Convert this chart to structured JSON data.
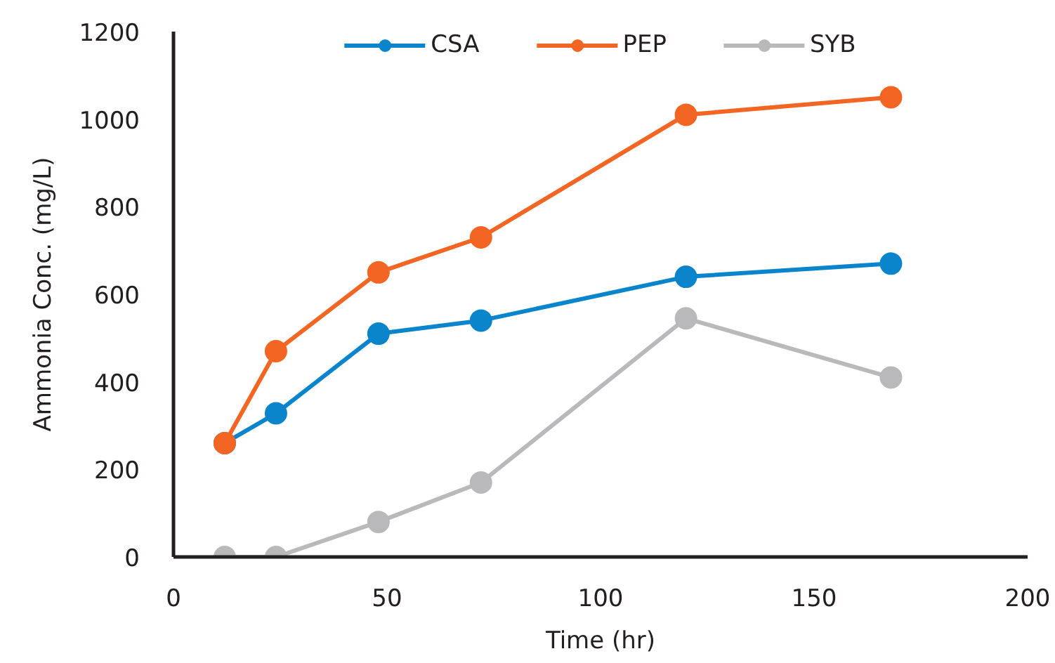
{
  "chart_data": {
    "type": "line",
    "xlabel": "Time (hr)",
    "ylabel": "Ammonia Conc. (mg/L)",
    "x": [
      12,
      24,
      48,
      72,
      120,
      168
    ],
    "series": [
      {
        "name": "CSA",
        "color": "#0a85cc",
        "values": [
          260,
          328,
          510,
          540,
          640,
          670
        ]
      },
      {
        "name": "PEP",
        "color": "#f26522",
        "values": [
          260,
          470,
          650,
          730,
          1010,
          1050
        ]
      },
      {
        "name": "SYB",
        "color": "#b9b9bc",
        "values": [
          0,
          0,
          80,
          170,
          545,
          410
        ]
      }
    ],
    "xlim": [
      0,
      200
    ],
    "xticks": [
      0,
      50,
      100,
      150,
      200
    ],
    "ylim": [
      0,
      1200
    ],
    "yticks": [
      0,
      200,
      400,
      600,
      800,
      1000,
      1200
    ],
    "grid": false,
    "legend": "top",
    "marker": "circle",
    "line_style": "solid"
  }
}
